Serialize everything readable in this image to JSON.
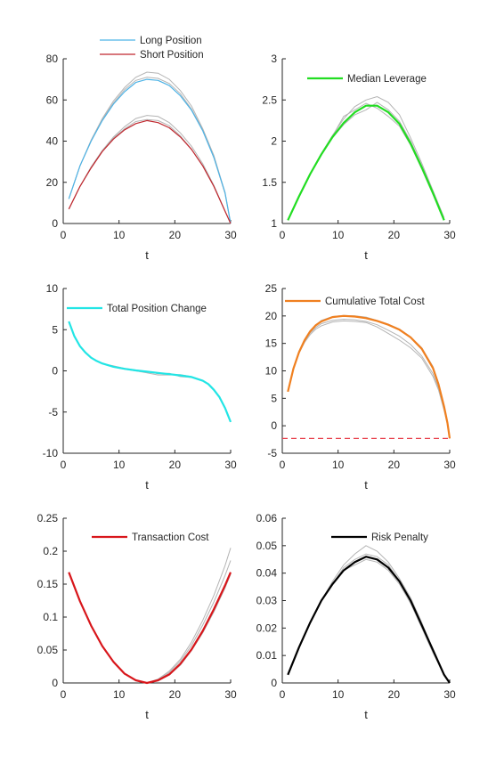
{
  "chart_data": [
    {
      "type": "line",
      "title": "",
      "xlabel": "t",
      "ylabel": "",
      "xlim": [
        0,
        30
      ],
      "ylim": [
        0,
        80
      ],
      "xticks": [
        0,
        10,
        20,
        30
      ],
      "yticks": [
        0,
        20,
        40,
        60,
        80
      ],
      "legend_position": "top",
      "series": [
        {
          "name": "Long Position",
          "color": "#4db3e6",
          "width": 1.2,
          "x": [
            1,
            3,
            5,
            7,
            9,
            11,
            13,
            15,
            17,
            19,
            21,
            23,
            25,
            27,
            29,
            30
          ],
          "y": [
            12,
            28,
            40,
            50,
            58,
            64,
            68.5,
            70,
            69.5,
            67,
            62,
            55,
            45,
            32,
            15,
            0
          ]
        },
        {
          "name": "Short Position",
          "color": "#c0262d",
          "width": 1.2,
          "x": [
            1,
            3,
            5,
            7,
            9,
            11,
            13,
            15,
            17,
            19,
            21,
            23,
            25,
            27,
            29,
            30
          ],
          "y": [
            7,
            18,
            27,
            35,
            41,
            45.5,
            48.5,
            50,
            49,
            46.5,
            42,
            36,
            28,
            18,
            6,
            0
          ]
        }
      ],
      "background_series": [
        {
          "x": [
            1,
            3,
            5,
            7,
            9,
            11,
            13,
            15,
            17,
            19,
            21,
            23,
            25,
            27,
            29,
            30
          ],
          "y": [
            12,
            28,
            40.5,
            51,
            59.5,
            66,
            71,
            73.5,
            73,
            70,
            64.5,
            57,
            46,
            33,
            15,
            0
          ]
        },
        {
          "x": [
            1,
            3,
            5,
            7,
            9,
            11,
            13,
            15,
            17,
            19,
            21,
            23,
            25,
            27,
            29,
            30
          ],
          "y": [
            12,
            28,
            40,
            50.5,
            58.5,
            65,
            69.5,
            71,
            70.5,
            68,
            63,
            55.5,
            45.5,
            32,
            14.5,
            0
          ]
        },
        {
          "x": [
            1,
            3,
            5,
            7,
            9,
            11,
            13,
            15,
            17,
            19,
            21,
            23,
            25,
            27,
            29,
            30
          ],
          "y": [
            7,
            18,
            27.5,
            35.5,
            42,
            47,
            51,
            52.5,
            52,
            49,
            44,
            37.5,
            29,
            18.5,
            6,
            0
          ]
        },
        {
          "x": [
            1,
            3,
            5,
            7,
            9,
            11,
            13,
            15,
            17,
            19,
            21,
            23,
            25,
            27,
            29,
            30
          ],
          "y": [
            7,
            18,
            27,
            35,
            41.5,
            46,
            49.5,
            50.5,
            50,
            47.5,
            42.5,
            36,
            28,
            18,
            6,
            0
          ]
        }
      ]
    },
    {
      "type": "line",
      "title": "",
      "xlabel": "t",
      "ylabel": "",
      "xlim": [
        0,
        30
      ],
      "ylim": [
        1,
        3
      ],
      "xticks": [
        0,
        10,
        20,
        30
      ],
      "yticks": [
        1,
        1.5,
        2,
        2.5,
        3
      ],
      "legend_position": "top",
      "series": [
        {
          "name": "Median Leverage",
          "color": "#22dd22",
          "width": 2.2,
          "x": [
            1,
            3,
            5,
            7,
            9,
            11,
            13,
            15,
            17,
            19,
            21,
            23,
            25,
            27,
            29
          ],
          "y": [
            1.04,
            1.33,
            1.6,
            1.84,
            2.05,
            2.22,
            2.35,
            2.43,
            2.43,
            2.35,
            2.21,
            1.97,
            1.68,
            1.37,
            1.04
          ]
        }
      ],
      "background_series": [
        {
          "x": [
            1,
            3,
            5,
            7,
            9,
            11,
            13,
            15,
            17,
            19,
            21,
            23,
            25,
            27,
            29
          ],
          "y": [
            1.04,
            1.33,
            1.6,
            1.85,
            2.07,
            2.27,
            2.42,
            2.5,
            2.54,
            2.47,
            2.32,
            2.04,
            1.73,
            1.4,
            1.07
          ]
        },
        {
          "x": [
            1,
            3,
            5,
            7,
            9,
            11,
            13,
            15,
            17,
            19,
            21,
            23,
            25,
            27,
            29
          ],
          "y": [
            1.04,
            1.33,
            1.6,
            1.84,
            2.06,
            2.3,
            2.38,
            2.46,
            2.4,
            2.3,
            2.18,
            1.95,
            1.66,
            1.35,
            1.05
          ]
        },
        {
          "x": [
            1,
            3,
            5,
            7,
            9,
            11,
            13,
            15,
            17,
            19,
            21,
            23,
            25,
            27,
            29
          ],
          "y": [
            1.04,
            1.33,
            1.6,
            1.83,
            2.04,
            2.2,
            2.32,
            2.38,
            2.47,
            2.38,
            2.24,
            2.0,
            1.7,
            1.38,
            1.05
          ]
        }
      ]
    },
    {
      "type": "line",
      "title": "",
      "xlabel": "t",
      "ylabel": "",
      "xlim": [
        0,
        30
      ],
      "ylim": [
        -10,
        10
      ],
      "xticks": [
        0,
        10,
        20,
        30
      ],
      "yticks": [
        -10,
        -5,
        0,
        5,
        10
      ],
      "legend_position": "top-left",
      "series": [
        {
          "name": "Total Position Change",
          "color": "#22e5e5",
          "width": 2.2,
          "x": [
            1,
            2,
            3,
            4,
            5,
            6,
            7,
            9,
            11,
            13,
            15,
            17,
            19,
            21,
            23,
            25,
            26,
            27,
            28,
            29,
            30
          ],
          "y": [
            6.0,
            4.2,
            3.0,
            2.2,
            1.6,
            1.2,
            0.9,
            0.5,
            0.25,
            0.05,
            -0.1,
            -0.25,
            -0.4,
            -0.55,
            -0.75,
            -1.2,
            -1.6,
            -2.3,
            -3.2,
            -4.5,
            -6.2
          ]
        }
      ],
      "background_series": [
        {
          "x": [
            1,
            2,
            3,
            4,
            5,
            6,
            7,
            9,
            11,
            13,
            15,
            17,
            19,
            21,
            23,
            25,
            26,
            27,
            28,
            29,
            30
          ],
          "y": [
            6.0,
            4.2,
            3.0,
            2.2,
            1.6,
            1.2,
            0.9,
            0.6,
            0.3,
            0.1,
            -0.05,
            -0.35,
            -0.3,
            -0.7,
            -0.8,
            -1.2,
            -1.6,
            -2.3,
            -3.2,
            -4.5,
            -6.2
          ]
        },
        {
          "x": [
            1,
            2,
            3,
            4,
            5,
            6,
            7,
            9,
            11,
            13,
            15,
            17,
            19,
            21,
            23,
            25,
            26,
            27,
            28,
            29,
            30
          ],
          "y": [
            6.0,
            4.2,
            3.0,
            2.2,
            1.6,
            1.2,
            0.9,
            0.45,
            0.2,
            0.0,
            -0.25,
            -0.5,
            -0.5,
            -0.45,
            -0.7,
            -1.2,
            -1.6,
            -2.3,
            -3.2,
            -4.5,
            -6.2
          ]
        }
      ]
    },
    {
      "type": "line",
      "title": "",
      "xlabel": "t",
      "ylabel": "",
      "xlim": [
        0,
        30
      ],
      "ylim": [
        -5,
        25
      ],
      "xticks": [
        0,
        10,
        20,
        30
      ],
      "yticks": [
        -5,
        0,
        5,
        10,
        15,
        20,
        25
      ],
      "legend_position": "top",
      "series": [
        {
          "name": "Cumulative Total Cost",
          "color": "#f08020",
          "width": 2.2,
          "x": [
            1,
            2,
            3,
            4,
            5,
            6,
            7,
            9,
            11,
            13,
            15,
            17,
            19,
            21,
            23,
            25,
            27,
            28,
            29,
            29.6,
            30
          ],
          "y": [
            6.2,
            10.4,
            13.4,
            15.6,
            17.2,
            18.3,
            19.0,
            19.8,
            20.0,
            19.9,
            19.6,
            19.1,
            18.4,
            17.5,
            16.1,
            14.0,
            10.5,
            7.5,
            3.5,
            0.5,
            -2.3
          ]
        }
      ],
      "background_series": [
        {
          "x": [
            1,
            2,
            3,
            4,
            5,
            6,
            7,
            9,
            11,
            13,
            15,
            17,
            19,
            21,
            23,
            25,
            27,
            28,
            29,
            29.6,
            30
          ],
          "y": [
            6.2,
            10.4,
            13.3,
            15.4,
            16.9,
            17.9,
            18.6,
            19.2,
            19.4,
            19.3,
            19.0,
            18.4,
            17.4,
            16.3,
            14.8,
            12.7,
            9.5,
            6.8,
            3.0,
            0.3,
            -2.3
          ]
        },
        {
          "x": [
            1,
            2,
            3,
            4,
            5,
            6,
            7,
            9,
            11,
            13,
            15,
            17,
            19,
            21,
            23,
            25,
            27,
            28,
            29,
            29.6,
            30
          ],
          "y": [
            6.2,
            10.4,
            13.2,
            15.2,
            16.6,
            17.6,
            18.2,
            18.9,
            19.1,
            19.0,
            18.8,
            18.0,
            16.8,
            15.6,
            14.2,
            12.3,
            9.0,
            6.5,
            2.8,
            0.2,
            -2.3
          ]
        },
        {
          "x": [
            1,
            2,
            3,
            4,
            5,
            6,
            7,
            9,
            11,
            13,
            15,
            17,
            19,
            21,
            23,
            25,
            27,
            28,
            29,
            29.6,
            30
          ],
          "y": [
            6.2,
            10.4,
            13.4,
            15.6,
            17.2,
            18.4,
            19.2,
            19.9,
            20.1,
            20.0,
            19.8,
            19.2,
            18.5,
            17.6,
            16.2,
            14.2,
            10.8,
            7.8,
            3.6,
            0.6,
            -2.3
          ]
        }
      ],
      "reference_line": {
        "y": -2.3,
        "color": "#e8424f",
        "style": "dashed"
      }
    },
    {
      "type": "line",
      "title": "",
      "xlabel": "t",
      "ylabel": "",
      "xlim": [
        0,
        30
      ],
      "ylim": [
        0,
        0.25
      ],
      "xticks": [
        0,
        10,
        20,
        30
      ],
      "yticks": [
        0,
        0.05,
        0.1,
        0.15,
        0.2,
        0.25
      ],
      "legend_position": "top",
      "series": [
        {
          "name": "Transaction Cost",
          "color": "#d8161b",
          "width": 2.2,
          "x": [
            1,
            3,
            5,
            7,
            9,
            11,
            13,
            15,
            17,
            19,
            21,
            23,
            25,
            27,
            29,
            30
          ],
          "y": [
            0.168,
            0.124,
            0.087,
            0.056,
            0.032,
            0.014,
            0.004,
            0.0,
            0.004,
            0.013,
            0.029,
            0.051,
            0.079,
            0.112,
            0.148,
            0.168
          ]
        }
      ],
      "background_series": [
        {
          "x": [
            1,
            3,
            5,
            7,
            9,
            11,
            13,
            15,
            17,
            19,
            21,
            23,
            25,
            27,
            29,
            30
          ],
          "y": [
            0.168,
            0.124,
            0.087,
            0.056,
            0.032,
            0.014,
            0.004,
            0.0,
            0.006,
            0.018,
            0.036,
            0.062,
            0.095,
            0.133,
            0.178,
            0.205
          ]
        },
        {
          "x": [
            1,
            3,
            5,
            7,
            9,
            11,
            13,
            15,
            17,
            19,
            21,
            23,
            25,
            27,
            29,
            30
          ],
          "y": [
            0.168,
            0.124,
            0.087,
            0.056,
            0.032,
            0.014,
            0.004,
            0.0,
            0.005,
            0.016,
            0.033,
            0.057,
            0.088,
            0.123,
            0.163,
            0.186
          ]
        },
        {
          "x": [
            1,
            3,
            5,
            7,
            9,
            11,
            13,
            15,
            17,
            19,
            21,
            23,
            25,
            27,
            29,
            30
          ],
          "y": [
            0.168,
            0.124,
            0.087,
            0.056,
            0.032,
            0.014,
            0.004,
            0.0,
            0.003,
            0.012,
            0.027,
            0.049,
            0.076,
            0.108,
            0.144,
            0.165
          ]
        }
      ]
    },
    {
      "type": "line",
      "title": "",
      "xlabel": "t",
      "ylabel": "",
      "xlim": [
        0,
        30
      ],
      "ylim": [
        0,
        0.06
      ],
      "xticks": [
        0,
        10,
        20,
        30
      ],
      "yticks": [
        0,
        0.01,
        0.02,
        0.03,
        0.04,
        0.05,
        0.06
      ],
      "legend_position": "top",
      "series": [
        {
          "name": "Risk Penalty",
          "color": "#000000",
          "width": 2.2,
          "x": [
            1,
            3,
            5,
            7,
            9,
            11,
            13,
            15,
            17,
            19,
            21,
            23,
            25,
            27,
            29,
            30
          ],
          "y": [
            0.003,
            0.013,
            0.022,
            0.03,
            0.036,
            0.041,
            0.044,
            0.046,
            0.045,
            0.042,
            0.037,
            0.03,
            0.021,
            0.012,
            0.003,
            0.0
          ]
        }
      ],
      "background_series": [
        {
          "x": [
            1,
            3,
            5,
            7,
            9,
            11,
            13,
            15,
            17,
            19,
            21,
            23,
            25,
            27,
            29,
            30
          ],
          "y": [
            0.003,
            0.013,
            0.022,
            0.03,
            0.037,
            0.043,
            0.047,
            0.05,
            0.048,
            0.044,
            0.038,
            0.031,
            0.022,
            0.012,
            0.003,
            0.0
          ]
        },
        {
          "x": [
            1,
            3,
            5,
            7,
            9,
            11,
            13,
            15,
            17,
            19,
            21,
            23,
            25,
            27,
            29,
            30
          ],
          "y": [
            0.003,
            0.013,
            0.022,
            0.03,
            0.036,
            0.042,
            0.045,
            0.047,
            0.046,
            0.043,
            0.037,
            0.03,
            0.021,
            0.012,
            0.003,
            0.0
          ]
        },
        {
          "x": [
            1,
            3,
            5,
            7,
            9,
            11,
            13,
            15,
            17,
            19,
            21,
            23,
            25,
            27,
            29,
            30
          ],
          "y": [
            0.003,
            0.013,
            0.022,
            0.03,
            0.036,
            0.041,
            0.043,
            0.045,
            0.044,
            0.041,
            0.036,
            0.029,
            0.02,
            0.011,
            0.003,
            0.0
          ]
        }
      ]
    }
  ]
}
